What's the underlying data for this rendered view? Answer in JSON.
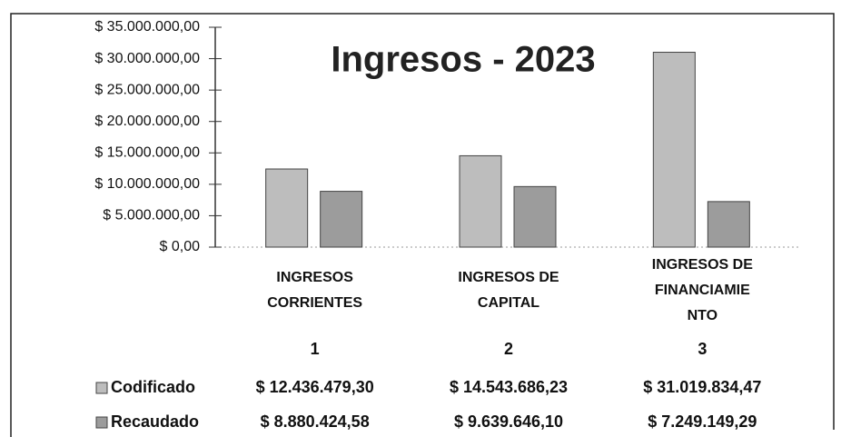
{
  "chart_data": {
    "type": "bar",
    "title": "Ingresos - 2023",
    "categories": [
      "INGRESOS CORRIENTES",
      "INGRESOS DE CAPITAL",
      "INGRESOS DE FINANCIAMIENTO"
    ],
    "category_numbers": [
      1,
      2,
      3
    ],
    "series": [
      {
        "name": "Codificado",
        "color": "#bdbdbd",
        "values": [
          12436479.3,
          14543686.23,
          31019834.47
        ],
        "value_labels": [
          "$ 12.436.479,30",
          "$ 14.543.686,23",
          "$ 31.019.834,47"
        ]
      },
      {
        "name": "Recaudado",
        "color": "#9c9c9c",
        "values": [
          8880424.58,
          9639646.1,
          7249149.29
        ],
        "value_labels": [
          "$ 8.880.424,58",
          "$ 9.639.646,10",
          "$ 7.249.149,29"
        ]
      }
    ],
    "ylim": [
      0,
      35000000
    ],
    "yticks": [
      {
        "value": 0,
        "label": "$ 0,00"
      },
      {
        "value": 5000000,
        "label": "$ 5.000.000,00"
      },
      {
        "value": 10000000,
        "label": "$ 10.000.000,00"
      },
      {
        "value": 15000000,
        "label": "$ 15.000.000,00"
      },
      {
        "value": 20000000,
        "label": "$ 20.000.000,00"
      },
      {
        "value": 25000000,
        "label": "$ 25.000.000,00"
      },
      {
        "value": 30000000,
        "label": "$ 30.000.000,00"
      },
      {
        "value": 35000000,
        "label": "$ 35.000.000,00"
      }
    ]
  }
}
